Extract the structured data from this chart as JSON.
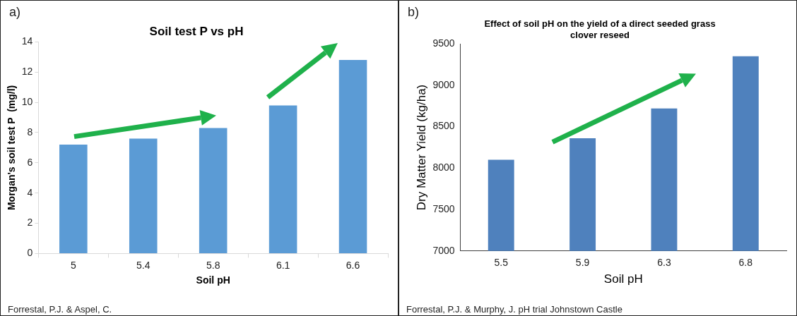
{
  "chart_data": [
    {
      "type": "bar",
      "title": "Soil test P vs pH",
      "xlabel": "Soil pH",
      "ylabel": "Morgan's soil test P  (mg/l)",
      "categories": [
        "5",
        "5.4",
        "5.8",
        "6.1",
        "6.6"
      ],
      "values": [
        7.2,
        7.6,
        8.3,
        9.8,
        12.8
      ],
      "color": "#5b9bd5",
      "ylim": [
        0,
        14
      ],
      "yticks": [
        0,
        2,
        4,
        6,
        8,
        10,
        12,
        14
      ],
      "grid": false,
      "annotations": [
        "a)",
        "Forrestal, P.J. & Aspel, C."
      ]
    },
    {
      "type": "bar",
      "title": "Effect of soil pH on the yield of a direct seeded grass clover reseed",
      "xlabel": "Soil pH",
      "ylabel": "Dry Matter Yield (kg/ha)",
      "categories": [
        "5.5",
        "5.9",
        "6.3",
        "6.8"
      ],
      "values": [
        8100,
        8360,
        8720,
        9350
      ],
      "color": "#4f81bd",
      "ylim": [
        7000,
        9500
      ],
      "yticks": [
        7000,
        7500,
        8000,
        8500,
        9000,
        9500
      ],
      "grid": false,
      "annotations": [
        "b)",
        "Forrestal, P.J. & Murphy, J. pH trial Johnstown Castle"
      ]
    }
  ]
}
